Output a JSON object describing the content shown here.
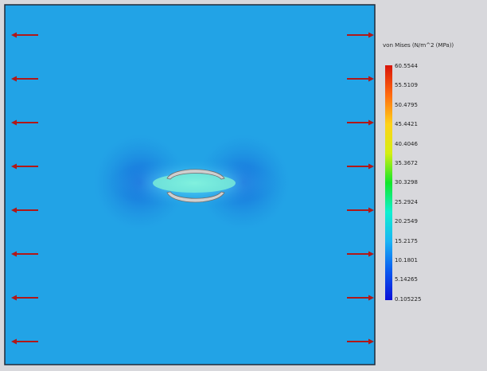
{
  "legend": {
    "title": "von Mises (N/m^2 (MPa))",
    "ticks": [
      "60.5544",
      "55.5109",
      "50.4795",
      "45.4421",
      "40.4046",
      "35.3672",
      "30.3298",
      "25.2924",
      "20.2549",
      "15.2175",
      "10.1801",
      "5.14265",
      "0.105225"
    ],
    "colormap": [
      "#0a0fd8",
      "#0a5af0",
      "#1ab4f5",
      "#10f0d0",
      "#12e62a",
      "#d4ef12",
      "#ffd21a",
      "#ff6a10",
      "#d8140a"
    ]
  },
  "plot": {
    "background": "#22a3e6",
    "arrow_color": "#b01818",
    "hole_color": "#cfcfcf",
    "load_arrows_per_side": 8
  }
}
